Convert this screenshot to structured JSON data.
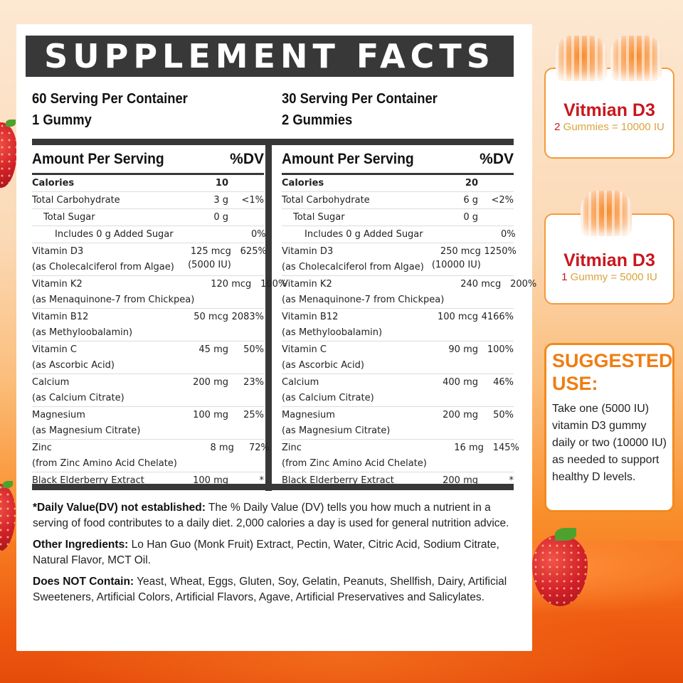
{
  "title": "SUPPLEMENT FACTS",
  "left_panel": {
    "servings_per_container": "60 Serving Per Container",
    "serving_size": "1 Gummy",
    "header_label": "Amount Per Serving",
    "header_dv": "%DV",
    "rows": [
      {
        "name": "Calories",
        "sub": "",
        "amount": "10",
        "amount_sub": "",
        "dv": ""
      },
      {
        "name": "Total Carbohydrate",
        "sub": "",
        "amount": "3 g",
        "amount_sub": "",
        "dv": "<1%"
      },
      {
        "name": "Total Sugar",
        "sub": "",
        "amount": "0 g",
        "amount_sub": "",
        "dv": ""
      },
      {
        "name": "Includes 0 g Added Sugar",
        "sub": "",
        "amount": "",
        "amount_sub": "",
        "dv": "0%"
      },
      {
        "name": "Vitamin D3",
        "sub": "(as Cholecalciferol from Algae)",
        "amount": "125 mcg",
        "amount_sub": "(5000 IU)",
        "dv": "625%"
      },
      {
        "name": "Vitamin K2",
        "sub": "(as Menaquinone-7 from Chickpea)",
        "amount": "120 mcg",
        "amount_sub": "",
        "dv": "100%"
      },
      {
        "name": "Vitamin B12",
        "sub": "(as Methyloobalamin)",
        "amount": "50 mcg",
        "amount_sub": "",
        "dv": "2083%"
      },
      {
        "name": "Vitamin C",
        "sub": "(as Ascorbic Acid)",
        "amount": "45 mg",
        "amount_sub": "",
        "dv": "50%"
      },
      {
        "name": "Calcium",
        "sub": "(as Calcium Citrate)",
        "amount": "200 mg",
        "amount_sub": "",
        "dv": "23%"
      },
      {
        "name": "Magnesium",
        "sub": "(as Magnesium Citrate)",
        "amount": "100 mg",
        "amount_sub": "",
        "dv": "25%"
      },
      {
        "name": "Zinc",
        "sub": "(from Zinc Amino Acid Chelate)",
        "amount": "8 mg",
        "amount_sub": "",
        "dv": "72%"
      },
      {
        "name": "Black Elderberry Extract",
        "sub": "",
        "amount": "100 mg",
        "amount_sub": "",
        "dv": "*"
      }
    ]
  },
  "right_panel": {
    "servings_per_container": "30 Serving Per Container",
    "serving_size": "2 Gummies",
    "header_label": "Amount Per Serving",
    "header_dv": "%DV",
    "rows": [
      {
        "name": "Calories",
        "sub": "",
        "amount": "20",
        "amount_sub": "",
        "dv": ""
      },
      {
        "name": "Total Carbohydrate",
        "sub": "",
        "amount": "6 g",
        "amount_sub": "",
        "dv": "<2%"
      },
      {
        "name": "Total Sugar",
        "sub": "",
        "amount": "0 g",
        "amount_sub": "",
        "dv": ""
      },
      {
        "name": "Includes 0 g Added Sugar",
        "sub": "",
        "amount": "",
        "amount_sub": "",
        "dv": "0%"
      },
      {
        "name": "Vitamin D3",
        "sub": "(as Cholecalciferol from Algae)",
        "amount": "250 mcg",
        "amount_sub": "(10000 IU)",
        "dv": "1250%"
      },
      {
        "name": "Vitamin K2",
        "sub": "(as Menaquinone-7 from Chickpea)",
        "amount": "240 mcg",
        "amount_sub": "",
        "dv": "200%"
      },
      {
        "name": "Vitamin B12",
        "sub": "(as Methyloobalamin)",
        "amount": "100 mcg",
        "amount_sub": "",
        "dv": "4166%"
      },
      {
        "name": "Vitamin C",
        "sub": "(as Ascorbic Acid)",
        "amount": "90 mg",
        "amount_sub": "",
        "dv": "100%"
      },
      {
        "name": "Calcium",
        "sub": "(as Calcium Citrate)",
        "amount": "400 mg",
        "amount_sub": "",
        "dv": "46%"
      },
      {
        "name": "Magnesium",
        "sub": "(as Magnesium Citrate)",
        "amount": "200 mg",
        "amount_sub": "",
        "dv": "50%"
      },
      {
        "name": "Zinc",
        "sub": "(from Zinc Amino Acid Chelate)",
        "amount": "16 mg",
        "amount_sub": "",
        "dv": "145%"
      },
      {
        "name": "Black Elderberry Extract",
        "sub": "",
        "amount": "200 mg",
        "amount_sub": "",
        "dv": "*"
      }
    ]
  },
  "notes": {
    "dv_label": "*Daily Value(DV) not established:",
    "dv_text": " The % Daily Value (DV) tells you how much a nutrient in a serving of food contributes to a daily diet. 2,000 calories a day is used for general nutrition advice.",
    "other_label": "Other Ingredients:",
    "other_text": " Lo Han Guo (Monk Fruit) Extract, Pectin, Water, Citric Acid, Sodium Citrate, Natural Flavor, MCT Oil.",
    "not_contain_label": "Does NOT Contain:",
    "not_contain_text": " Yeast, Wheat, Eggs, Gluten, Soy, Gelatin, Peanuts, Shellfish, Dairy, Artificial Sweeteners, Artificial Colors, Artificial Flavors, Agave, Artificial Preservatives and Salicylates."
  },
  "promo_two": {
    "title": "Vitmian D3",
    "count": "2",
    "text": " Gummies = 10000 IU"
  },
  "promo_one": {
    "title": "Vitmian D3",
    "count": "1",
    "text": " Gummy = 5000 IU"
  },
  "suggested_use": {
    "title_line1": "SUGGESTED",
    "title_line2": "USE:",
    "body": "Take one (5000 IU) vitamin D3 gummy daily or two (10000 IU) as needed to support healthy D levels."
  },
  "colors": {
    "title_bar": "#383838",
    "promo_title": "#c8171e",
    "promo_sub": "#d9a43c",
    "suggested_title": "#f07d12",
    "border_orange": "#f28a1e"
  }
}
